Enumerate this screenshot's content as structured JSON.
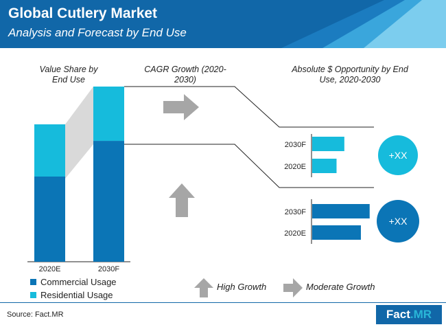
{
  "header": {
    "title": "Global Cutlery Market",
    "subtitle": "Analysis and Forecast by End Use"
  },
  "sections": {
    "value_share": "Value Share by End Use",
    "cagr": "CAGR Growth (2020-2030)",
    "opportunity": "Absolute $ Opportunity by End Use, 2020-2030"
  },
  "growth_legend": {
    "high": "High Growth",
    "moderate": "Moderate Growth"
  },
  "colors": {
    "commercial": "#0b75b6",
    "residential": "#16bbdc",
    "header": "#1167a8",
    "arrow": "#a6a6a6"
  },
  "source": "Source: Fact.MR",
  "logo": {
    "name": "Fact",
    "suffix": ".MR"
  },
  "chart_data": [
    {
      "type": "bar",
      "stacked": true,
      "categories": [
        "2020E",
        "2030F"
      ],
      "series": [
        {
          "name": "Commercial Usage",
          "values": [
            62,
            69
          ]
        },
        {
          "name": "Residential Usage",
          "values": [
            38,
            31
          ]
        }
      ],
      "ylim": [
        0,
        100
      ],
      "legend": "bottom-left"
    },
    {
      "type": "bar",
      "orientation": "horizontal",
      "categories": [
        "2030F",
        "2020E"
      ],
      "series": [
        {
          "name": "Residential Usage",
          "values": [
            3.3,
            2.5
          ]
        }
      ],
      "annotation": "+XX"
    },
    {
      "type": "bar",
      "orientation": "horizontal",
      "categories": [
        "2030F",
        "2020E"
      ],
      "series": [
        {
          "name": "Commercial Usage",
          "values": [
            5.9,
            5.0
          ]
        }
      ],
      "annotation": "+XX"
    }
  ]
}
